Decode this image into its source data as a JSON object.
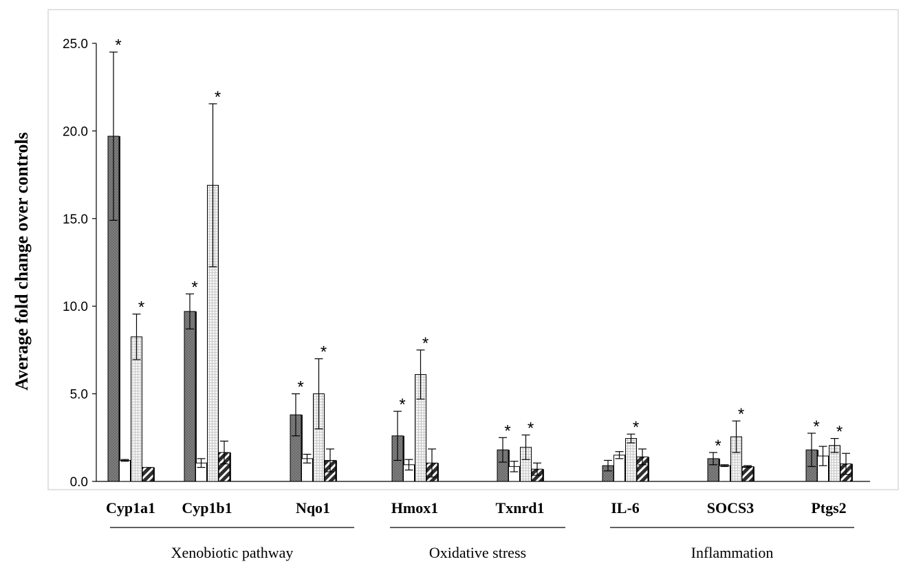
{
  "chart_data": {
    "type": "bar",
    "ylabel": "Average fold change over controls",
    "xlabel": "",
    "ylim": [
      0,
      25
    ],
    "y_ticks": [
      "0.0",
      "5.0",
      "10.0",
      "15.0",
      "20.0",
      "25.0"
    ],
    "grid": false,
    "categories": [
      "Cyp1a1",
      "Cyp1b1",
      "Nqo1",
      "Hmox1",
      "Txnrd1",
      "IL-6",
      "SOCS3",
      "Ptgs2"
    ],
    "groups": [
      {
        "label": "Xenobiotic pathway",
        "categories": [
          "Cyp1a1",
          "Cyp1b1",
          "Nqo1"
        ]
      },
      {
        "label": "Oxidative stress",
        "categories": [
          "Hmox1",
          "Txnrd1"
        ]
      },
      {
        "label": "Inflammation",
        "categories": [
          "IL-6",
          "SOCS3",
          "Ptgs2"
        ]
      }
    ],
    "series": [
      {
        "pattern": "dark-gray",
        "color": "#7f7f7f",
        "values": [
          19.7,
          9.7,
          3.8,
          2.6,
          1.8,
          0.9,
          1.3,
          1.8
        ],
        "errors": [
          4.8,
          1.0,
          1.2,
          1.4,
          0.7,
          0.3,
          0.35,
          0.95
        ],
        "significant": [
          true,
          true,
          true,
          true,
          true,
          false,
          true,
          true
        ]
      },
      {
        "pattern": "white",
        "color": "#ffffff",
        "values": [
          1.2,
          1.05,
          1.3,
          0.95,
          0.85,
          1.5,
          0.9,
          1.45
        ],
        "errors": [
          0.05,
          0.25,
          0.25,
          0.3,
          0.3,
          0.2,
          0.05,
          0.55
        ],
        "significant": [
          false,
          false,
          false,
          false,
          false,
          false,
          false,
          false
        ]
      },
      {
        "pattern": "dotted",
        "color": "#e6e6e6",
        "values": [
          8.25,
          16.9,
          5.0,
          6.1,
          1.95,
          2.45,
          2.55,
          2.05
        ],
        "errors": [
          1.3,
          4.65,
          2.0,
          1.4,
          0.7,
          0.25,
          0.9,
          0.4
        ],
        "significant": [
          true,
          true,
          true,
          true,
          true,
          true,
          true,
          true
        ]
      },
      {
        "pattern": "hatched",
        "color": "#404040",
        "values": [
          0.8,
          1.65,
          1.2,
          1.05,
          0.7,
          1.4,
          0.85,
          1.0
        ],
        "errors": [
          0.0,
          0.65,
          0.65,
          0.8,
          0.35,
          0.45,
          0.05,
          0.6
        ],
        "significant": [
          false,
          false,
          false,
          false,
          false,
          false,
          false,
          false
        ]
      }
    ],
    "significance_marker": "*"
  }
}
